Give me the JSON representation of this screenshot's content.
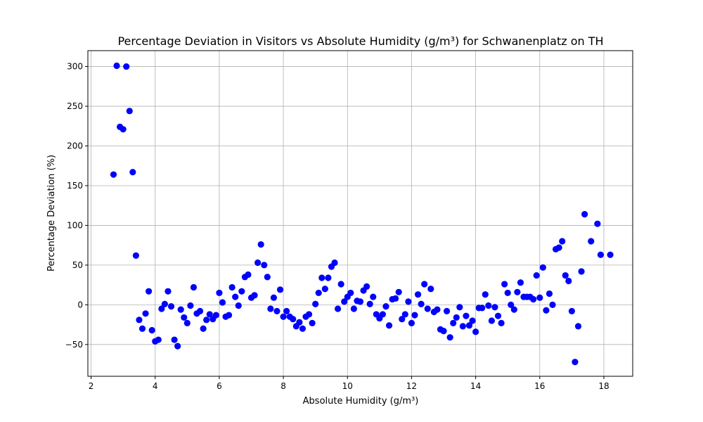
{
  "chart_data": {
    "type": "scatter",
    "title": "Percentage Deviation in Visitors vs Absolute Humidity (g/m³) for Schwanenplatz on TH",
    "xlabel": "Absolute Humidity (g/m³)",
    "ylabel": "Percentage Deviation (%)",
    "xlim": [
      1.9,
      18.9
    ],
    "ylim": [
      -90,
      320
    ],
    "x_ticks": [
      2,
      4,
      6,
      8,
      10,
      12,
      14,
      16,
      18
    ],
    "y_ticks": [
      -50,
      0,
      50,
      100,
      150,
      200,
      250,
      300
    ],
    "x_tick_labels": [
      "2",
      "4",
      "6",
      "8",
      "10",
      "12",
      "14",
      "16",
      "18"
    ],
    "y_tick_labels": [
      "−50",
      "0",
      "50",
      "100",
      "150",
      "200",
      "250",
      "300"
    ],
    "grid": true,
    "marker_color": "#0000ff",
    "points": [
      [
        2.7,
        164
      ],
      [
        2.8,
        301
      ],
      [
        2.9,
        224
      ],
      [
        3.0,
        221
      ],
      [
        3.1,
        300
      ],
      [
        3.2,
        244
      ],
      [
        3.3,
        167
      ],
      [
        3.4,
        62
      ],
      [
        3.5,
        -19
      ],
      [
        3.6,
        -30
      ],
      [
        3.7,
        -11
      ],
      [
        3.8,
        17
      ],
      [
        3.9,
        -32
      ],
      [
        4.0,
        -46
      ],
      [
        4.1,
        -44
      ],
      [
        4.2,
        -5
      ],
      [
        4.3,
        1
      ],
      [
        4.4,
        17
      ],
      [
        4.5,
        -2
      ],
      [
        4.6,
        -44
      ],
      [
        4.7,
        -52
      ],
      [
        4.8,
        -6
      ],
      [
        4.9,
        -16
      ],
      [
        5.0,
        -23
      ],
      [
        5.1,
        -1
      ],
      [
        5.2,
        22
      ],
      [
        5.3,
        -11
      ],
      [
        5.4,
        -8
      ],
      [
        5.5,
        -30
      ],
      [
        5.6,
        -19
      ],
      [
        5.7,
        -12
      ],
      [
        5.8,
        -18
      ],
      [
        5.9,
        -13
      ],
      [
        6.0,
        15
      ],
      [
        6.1,
        3
      ],
      [
        6.2,
        -15
      ],
      [
        6.3,
        -13
      ],
      [
        6.4,
        22
      ],
      [
        6.5,
        10
      ],
      [
        6.6,
        -1
      ],
      [
        6.7,
        17
      ],
      [
        6.8,
        35
      ],
      [
        6.9,
        38
      ],
      [
        7.0,
        9
      ],
      [
        7.1,
        12
      ],
      [
        7.2,
        53
      ],
      [
        7.3,
        76
      ],
      [
        7.4,
        50
      ],
      [
        7.5,
        35
      ],
      [
        7.6,
        -5
      ],
      [
        7.7,
        9
      ],
      [
        7.8,
        -8
      ],
      [
        7.9,
        19
      ],
      [
        8.0,
        -15
      ],
      [
        8.1,
        -8
      ],
      [
        8.2,
        -15
      ],
      [
        8.3,
        -18
      ],
      [
        8.4,
        -27
      ],
      [
        8.5,
        -22
      ],
      [
        8.6,
        -30
      ],
      [
        8.7,
        -15
      ],
      [
        8.8,
        -12
      ],
      [
        8.9,
        -23
      ],
      [
        9.0,
        1
      ],
      [
        9.1,
        15
      ],
      [
        9.2,
        34
      ],
      [
        9.3,
        20
      ],
      [
        9.4,
        34
      ],
      [
        9.5,
        48
      ],
      [
        9.6,
        53
      ],
      [
        9.7,
        -5
      ],
      [
        9.8,
        26
      ],
      [
        9.9,
        4
      ],
      [
        10.0,
        10
      ],
      [
        10.1,
        15
      ],
      [
        10.2,
        -5
      ],
      [
        10.3,
        5
      ],
      [
        10.4,
        4
      ],
      [
        10.5,
        18
      ],
      [
        10.6,
        23
      ],
      [
        10.7,
        1
      ],
      [
        10.8,
        10
      ],
      [
        10.9,
        -12
      ],
      [
        11.0,
        -17
      ],
      [
        11.1,
        -12
      ],
      [
        11.2,
        -2
      ],
      [
        11.3,
        -26
      ],
      [
        11.4,
        7
      ],
      [
        11.5,
        8
      ],
      [
        11.6,
        16
      ],
      [
        11.7,
        -18
      ],
      [
        11.8,
        -12
      ],
      [
        11.9,
        4
      ],
      [
        12.0,
        -23
      ],
      [
        12.1,
        -13
      ],
      [
        12.2,
        13
      ],
      [
        12.3,
        1
      ],
      [
        12.4,
        26
      ],
      [
        12.5,
        -5
      ],
      [
        12.6,
        20
      ],
      [
        12.7,
        -9
      ],
      [
        12.8,
        -6
      ],
      [
        12.9,
        -31
      ],
      [
        13.0,
        -33
      ],
      [
        13.1,
        -8
      ],
      [
        13.2,
        -41
      ],
      [
        13.3,
        -23
      ],
      [
        13.4,
        -16
      ],
      [
        13.5,
        -3
      ],
      [
        13.6,
        -27
      ],
      [
        13.7,
        -14
      ],
      [
        13.8,
        -26
      ],
      [
        13.9,
        -20
      ],
      [
        14.0,
        -34
      ],
      [
        14.1,
        -4
      ],
      [
        14.2,
        -4
      ],
      [
        14.3,
        13
      ],
      [
        14.4,
        -1
      ],
      [
        14.5,
        -20
      ],
      [
        14.6,
        -3
      ],
      [
        14.7,
        -14
      ],
      [
        14.8,
        -23
      ],
      [
        14.9,
        26
      ],
      [
        15.0,
        15
      ],
      [
        15.1,
        0
      ],
      [
        15.2,
        -6
      ],
      [
        15.3,
        16
      ],
      [
        15.4,
        28
      ],
      [
        15.5,
        10
      ],
      [
        15.6,
        10
      ],
      [
        15.7,
        10
      ],
      [
        15.8,
        7
      ],
      [
        15.9,
        37
      ],
      [
        16.0,
        9
      ],
      [
        16.1,
        47
      ],
      [
        16.2,
        -7
      ],
      [
        16.3,
        14
      ],
      [
        16.4,
        0
      ],
      [
        16.5,
        70
      ],
      [
        16.6,
        72
      ],
      [
        16.7,
        80
      ],
      [
        16.8,
        37
      ],
      [
        16.9,
        30
      ],
      [
        17.0,
        -8
      ],
      [
        17.1,
        -72
      ],
      [
        17.2,
        -27
      ],
      [
        17.3,
        42
      ],
      [
        17.4,
        114
      ],
      [
        17.6,
        80
      ],
      [
        17.8,
        102
      ],
      [
        17.9,
        63
      ],
      [
        18.2,
        63
      ]
    ]
  }
}
